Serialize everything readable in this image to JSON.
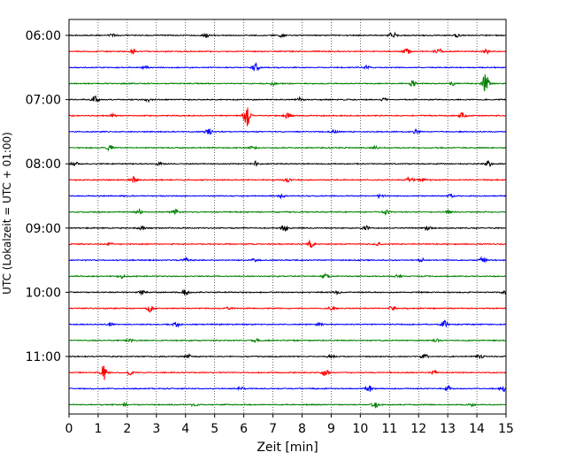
{
  "chart_data": {
    "type": "line",
    "title": "",
    "xlabel": "Zeit  [min]",
    "ylabel": "UTC (Lokalzeit = UTC + 01:00)",
    "xlim": [
      0,
      15
    ],
    "x_ticks": [
      "0",
      "1",
      "2",
      "3",
      "4",
      "5",
      "6",
      "7",
      "8",
      "9",
      "10",
      "11",
      "12",
      "13",
      "14",
      "15"
    ],
    "y_tick_labels": [
      "06:00",
      "07:00",
      "08:00",
      "09:00",
      "10:00",
      "11:00"
    ],
    "grid": "vertical dotted lines at each minute",
    "traces_per_hour": 4,
    "trace_interval_min": 15,
    "color_cycle": [
      "#000000",
      "#ff0000",
      "#0000ff",
      "#008000"
    ],
    "traces": [
      {
        "start": "06:00",
        "color": "#000000",
        "events": [
          [
            11.1,
            1.4
          ],
          [
            4.7,
            0.6
          ],
          [
            7.3,
            0.5
          ],
          [
            1.5,
            0.5
          ],
          [
            13.3,
            0.5
          ]
        ]
      },
      {
        "start": "06:15",
        "color": "#ff0000",
        "events": [
          [
            2.2,
            0.9
          ],
          [
            11.6,
            1.0
          ],
          [
            12.7,
            0.9
          ],
          [
            14.3,
            0.8
          ]
        ]
      },
      {
        "start": "06:30",
        "color": "#0000ff",
        "events": [
          [
            6.4,
            1.4
          ],
          [
            2.6,
            0.5
          ],
          [
            10.2,
            0.6
          ]
        ]
      },
      {
        "start": "06:45",
        "color": "#008000",
        "events": [
          [
            14.3,
            3.4
          ],
          [
            11.8,
            1.2
          ],
          [
            13.2,
            0.7
          ],
          [
            7.0,
            0.5
          ]
        ]
      },
      {
        "start": "07:00",
        "color": "#000000",
        "events": [
          [
            0.9,
            1.3
          ],
          [
            2.7,
            0.6
          ],
          [
            7.9,
            0.6
          ],
          [
            10.8,
            0.5
          ]
        ]
      },
      {
        "start": "07:15",
        "color": "#ff0000",
        "events": [
          [
            6.1,
            3.6
          ],
          [
            7.5,
            1.3
          ],
          [
            13.5,
            1.2
          ],
          [
            1.5,
            0.5
          ]
        ]
      },
      {
        "start": "07:30",
        "color": "#0000ff",
        "events": [
          [
            4.8,
            1.1
          ],
          [
            11.9,
            0.7
          ],
          [
            9.1,
            0.6
          ]
        ]
      },
      {
        "start": "07:45",
        "color": "#008000",
        "events": [
          [
            1.4,
            0.9
          ],
          [
            6.3,
            0.5
          ],
          [
            10.5,
            0.5
          ]
        ]
      },
      {
        "start": "08:00",
        "color": "#000000",
        "events": [
          [
            6.4,
            0.9
          ],
          [
            14.4,
            0.9
          ],
          [
            0.2,
            0.7
          ],
          [
            3.1,
            0.5
          ]
        ]
      },
      {
        "start": "08:15",
        "color": "#ff0000",
        "events": [
          [
            2.2,
            1.1
          ],
          [
            11.7,
            0.9
          ],
          [
            12.1,
            0.8
          ],
          [
            7.5,
            0.6
          ]
        ]
      },
      {
        "start": "08:30",
        "color": "#0000ff",
        "events": [
          [
            10.7,
            0.7
          ],
          [
            7.3,
            0.6
          ],
          [
            13.1,
            0.5
          ]
        ]
      },
      {
        "start": "08:45",
        "color": "#008000",
        "events": [
          [
            3.6,
            1.3
          ],
          [
            2.4,
            0.8
          ],
          [
            10.9,
            0.8
          ],
          [
            13.0,
            0.5
          ]
        ]
      },
      {
        "start": "09:00",
        "color": "#000000",
        "events": [
          [
            7.4,
            1.1
          ],
          [
            10.2,
            0.8
          ],
          [
            12.3,
            0.6
          ],
          [
            2.5,
            0.5
          ]
        ]
      },
      {
        "start": "09:15",
        "color": "#ff0000",
        "events": [
          [
            8.3,
            1.2
          ],
          [
            10.6,
            0.5
          ],
          [
            1.4,
            0.5
          ]
        ]
      },
      {
        "start": "09:30",
        "color": "#0000ff",
        "events": [
          [
            14.2,
            1.1
          ],
          [
            4.0,
            0.8
          ],
          [
            12.1,
            0.6
          ],
          [
            6.4,
            0.5
          ]
        ]
      },
      {
        "start": "09:45",
        "color": "#008000",
        "events": [
          [
            8.8,
            1.3
          ],
          [
            1.8,
            0.6
          ],
          [
            11.3,
            0.6
          ]
        ]
      },
      {
        "start": "10:00",
        "color": "#000000",
        "events": [
          [
            4.0,
            1.0
          ],
          [
            2.5,
            0.6
          ],
          [
            9.2,
            0.5
          ],
          [
            15.0,
            0.8
          ]
        ]
      },
      {
        "start": "10:15",
        "color": "#ff0000",
        "events": [
          [
            2.8,
            1.3
          ],
          [
            9.0,
            0.7
          ],
          [
            11.1,
            0.6
          ],
          [
            5.5,
            0.5
          ]
        ]
      },
      {
        "start": "10:30",
        "color": "#0000ff",
        "events": [
          [
            12.9,
            1.2
          ],
          [
            3.7,
            0.8
          ],
          [
            1.4,
            0.6
          ],
          [
            8.6,
            0.5
          ]
        ]
      },
      {
        "start": "10:45",
        "color": "#008000",
        "events": [
          [
            2.1,
            0.6
          ],
          [
            6.4,
            0.5
          ],
          [
            12.6,
            0.5
          ]
        ]
      },
      {
        "start": "11:00",
        "color": "#000000",
        "events": [
          [
            12.2,
            1.1
          ],
          [
            4.1,
            0.6
          ],
          [
            9.0,
            0.6
          ],
          [
            14.1,
            0.5
          ]
        ]
      },
      {
        "start": "11:15",
        "color": "#ff0000",
        "events": [
          [
            1.2,
            2.6
          ],
          [
            8.8,
            1.3
          ],
          [
            2.1,
            0.8
          ],
          [
            12.5,
            0.7
          ]
        ]
      },
      {
        "start": "11:30",
        "color": "#0000ff",
        "events": [
          [
            10.3,
            1.2
          ],
          [
            13.0,
            0.9
          ],
          [
            14.9,
            0.9
          ],
          [
            5.9,
            0.5
          ]
        ]
      },
      {
        "start": "11:45",
        "color": "#008000",
        "events": [
          [
            10.5,
            1.1
          ],
          [
            1.9,
            0.6
          ],
          [
            4.3,
            0.5
          ],
          [
            13.8,
            0.5
          ]
        ]
      }
    ]
  }
}
